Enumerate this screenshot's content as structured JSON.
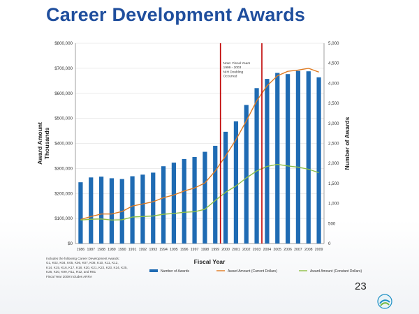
{
  "slide": {
    "title": "Career Development Awards",
    "page_number": "23",
    "footnote": {
      "lines": [
        "Includes the following Career Development Awards:",
        "G1, K02, K04, K05, K06, K07, K08, K10, K11, K12,",
        "K14, K15, K16, K17, K18, K20, K21, K22, K23, K24, K25,",
        "K26, K30, K99, R11, R12, and R81",
        "Fiscal Year 2009 includes ARRA"
      ]
    },
    "logo_icon": "agency-logo-icon"
  },
  "chart_data": {
    "type": "bar",
    "xlabel": "Fiscal Year",
    "ylabel_left": [
      "Award Amount",
      "Thousands"
    ],
    "ylabel_right": "Number of Awards",
    "categories": [
      "1986",
      "1987",
      "1988",
      "1989",
      "1990",
      "1991",
      "1992",
      "1993",
      "1994",
      "1995",
      "1996",
      "1997",
      "1998",
      "1999",
      "2000",
      "2001",
      "2002",
      "2003",
      "2004",
      "2005",
      "2006",
      "2007",
      "2008",
      "2009"
    ],
    "ylim_left": [
      0,
      800000
    ],
    "ylim_right": [
      0,
      5000
    ],
    "y_left_ticks": [
      "$0",
      "$100,000",
      "$200,000",
      "$300,000",
      "$400,000",
      "$500,000",
      "$600,000",
      "$700,000",
      "$800,000"
    ],
    "y_right_ticks": [
      "0",
      "500",
      "1,000",
      "1,500",
      "2,000",
      "2,500",
      "3,000",
      "3,500",
      "4,000",
      "4,500",
      "5,000"
    ],
    "series": [
      {
        "name": "Number of Awards",
        "type": "bar",
        "axis": "right",
        "color": "#1f6bb3",
        "values": [
          1530,
          1650,
          1670,
          1630,
          1610,
          1680,
          1720,
          1770,
          1930,
          2020,
          2110,
          2160,
          2290,
          2440,
          2790,
          3050,
          3460,
          3880,
          4110,
          4260,
          4230,
          4310,
          4300,
          4150
        ]
      },
      {
        "name": "Award Amount (Current Dollars)",
        "type": "line",
        "axis": "left",
        "color": "#e07b22",
        "values": [
          96000,
          108000,
          118000,
          118000,
          128000,
          150000,
          158000,
          167000,
          183000,
          194000,
          210000,
          222000,
          242000,
          290000,
          350000,
          415000,
          490000,
          570000,
          630000,
          670000,
          688000,
          693000,
          700000,
          685000
        ]
      },
      {
        "name": "Award Amount (Constant Dollars)",
        "type": "line",
        "axis": "left",
        "color": "#8fbf45",
        "values": [
          94000,
          97000,
          98000,
          94000,
          95000,
          106000,
          108000,
          110000,
          117000,
          120000,
          125000,
          127000,
          137000,
          172000,
          205000,
          230000,
          262000,
          290000,
          308000,
          316000,
          310000,
          305000,
          297000,
          283000
        ]
      }
    ],
    "reference_lines": {
      "years": [
        "1999",
        "2003"
      ],
      "color": "#c00000"
    },
    "annotation": [
      "Note: Fiscal Years",
      "1999 - 2003",
      "NIH Doubling",
      "Occurred"
    ],
    "legend_position": "bottom",
    "grid": true
  }
}
